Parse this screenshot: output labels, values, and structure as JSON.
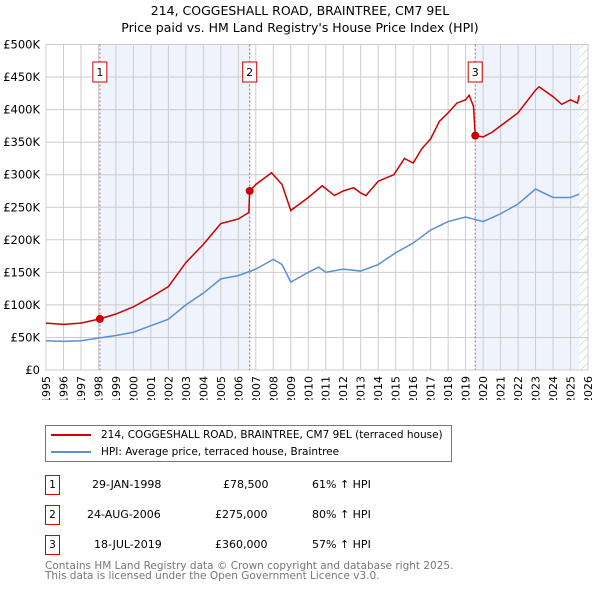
{
  "chart_data": {
    "type": "line",
    "title": "214, COGGESHALL ROAD, BRAINTREE, CM7 9EL",
    "subtitle": "Price paid vs. HM Land Registry's House Price Index (HPI)",
    "xlim": [
      1995,
      2026
    ],
    "ylim": [
      0,
      500000
    ],
    "x_ticks": [
      "1995",
      "1996",
      "1997",
      "1998",
      "1999",
      "2000",
      "2001",
      "2002",
      "2003",
      "2004",
      "2005",
      "2006",
      "2007",
      "2008",
      "2009",
      "2010",
      "2011",
      "2012",
      "2013",
      "2014",
      "2015",
      "2016",
      "2017",
      "2018",
      "2019",
      "2020",
      "2021",
      "2022",
      "2023",
      "2024",
      "2025",
      "2026"
    ],
    "y_ticks": [
      {
        "v": 0,
        "label": "£0"
      },
      {
        "v": 50000,
        "label": "£50K"
      },
      {
        "v": 100000,
        "label": "£100K"
      },
      {
        "v": 150000,
        "label": "£150K"
      },
      {
        "v": 200000,
        "label": "£200K"
      },
      {
        "v": 250000,
        "label": "£250K"
      },
      {
        "v": 300000,
        "label": "£300K"
      },
      {
        "v": 350000,
        "label": "£350K"
      },
      {
        "v": 400000,
        "label": "£400K"
      },
      {
        "v": 450000,
        "label": "£450K"
      },
      {
        "v": 500000,
        "label": "£500K"
      }
    ],
    "grid": true,
    "legend_position": "below",
    "series": [
      {
        "name": "214, COGGESHALL ROAD, BRAINTREE, CM7 9EL (terraced house)",
        "color": "#cc0000",
        "points": [
          [
            1995,
            72000
          ],
          [
            1996,
            70000
          ],
          [
            1997,
            72000
          ],
          [
            1998.08,
            78500
          ],
          [
            1999,
            86000
          ],
          [
            2000,
            97000
          ],
          [
            2001,
            112000
          ],
          [
            2002,
            128000
          ],
          [
            2003,
            165000
          ],
          [
            2004,
            193000
          ],
          [
            2005,
            225000
          ],
          [
            2006,
            232000
          ],
          [
            2006.6,
            242000
          ],
          [
            2006.65,
            275000
          ],
          [
            2007,
            285000
          ],
          [
            2007.9,
            303000
          ],
          [
            2008.5,
            285000
          ],
          [
            2009,
            245000
          ],
          [
            2010,
            265000
          ],
          [
            2010.8,
            283000
          ],
          [
            2011.5,
            268000
          ],
          [
            2012,
            275000
          ],
          [
            2012.6,
            280000
          ],
          [
            2013,
            272000
          ],
          [
            2013.3,
            268000
          ],
          [
            2014,
            290000
          ],
          [
            2014.9,
            300000
          ],
          [
            2015.5,
            325000
          ],
          [
            2016,
            318000
          ],
          [
            2016.5,
            340000
          ],
          [
            2017,
            355000
          ],
          [
            2017.5,
            382000
          ],
          [
            2018,
            395000
          ],
          [
            2018.5,
            410000
          ],
          [
            2019,
            415000
          ],
          [
            2019.2,
            422000
          ],
          [
            2019.45,
            405000
          ],
          [
            2019.55,
            360000
          ],
          [
            2020,
            358000
          ],
          [
            2020.5,
            365000
          ],
          [
            2021,
            375000
          ],
          [
            2022,
            395000
          ],
          [
            2023,
            430000
          ],
          [
            2023.2,
            435000
          ],
          [
            2024,
            420000
          ],
          [
            2024.5,
            408000
          ],
          [
            2025,
            415000
          ],
          [
            2025.4,
            410000
          ],
          [
            2025.5,
            422000
          ]
        ]
      },
      {
        "name": "HPI: Average price, terraced house, Braintree",
        "color": "#5b8fd6",
        "points": [
          [
            1995,
            45000
          ],
          [
            1996,
            44000
          ],
          [
            1997,
            45000
          ],
          [
            1998,
            49000
          ],
          [
            1999,
            53000
          ],
          [
            2000,
            58000
          ],
          [
            2001,
            68000
          ],
          [
            2002,
            78000
          ],
          [
            2003,
            100000
          ],
          [
            2004,
            118000
          ],
          [
            2005,
            140000
          ],
          [
            2006,
            145000
          ],
          [
            2007,
            155000
          ],
          [
            2008,
            170000
          ],
          [
            2008.5,
            162000
          ],
          [
            2009,
            135000
          ],
          [
            2010,
            150000
          ],
          [
            2010.6,
            158000
          ],
          [
            2011,
            150000
          ],
          [
            2012,
            155000
          ],
          [
            2013,
            152000
          ],
          [
            2014,
            162000
          ],
          [
            2015,
            180000
          ],
          [
            2016,
            195000
          ],
          [
            2017,
            215000
          ],
          [
            2018,
            228000
          ],
          [
            2019,
            235000
          ],
          [
            2020,
            228000
          ],
          [
            2021,
            240000
          ],
          [
            2022,
            255000
          ],
          [
            2023,
            278000
          ],
          [
            2024,
            265000
          ],
          [
            2025,
            265000
          ],
          [
            2025.5,
            270000
          ]
        ]
      }
    ],
    "sales": [
      {
        "n": "1",
        "x": 1998.08,
        "price": 78500,
        "date": "29-JAN-1998",
        "price_label": "£78,500",
        "hpi": "61% ↑ HPI"
      },
      {
        "n": "2",
        "x": 2006.65,
        "price": 275000,
        "date": "24-AUG-2006",
        "price_label": "£275,000",
        "hpi": "80% ↑ HPI"
      },
      {
        "n": "3",
        "x": 2019.55,
        "price": 360000,
        "date": "18-JUL-2019",
        "price_label": "£360,000",
        "hpi": "57% ↑ HPI"
      }
    ],
    "data_end": 2025.5
  },
  "footer": {
    "line1": "Contains HM Land Registry data © Crown copyright and database right 2025.",
    "line2": "This data is licensed under the Open Government Licence v3.0."
  }
}
